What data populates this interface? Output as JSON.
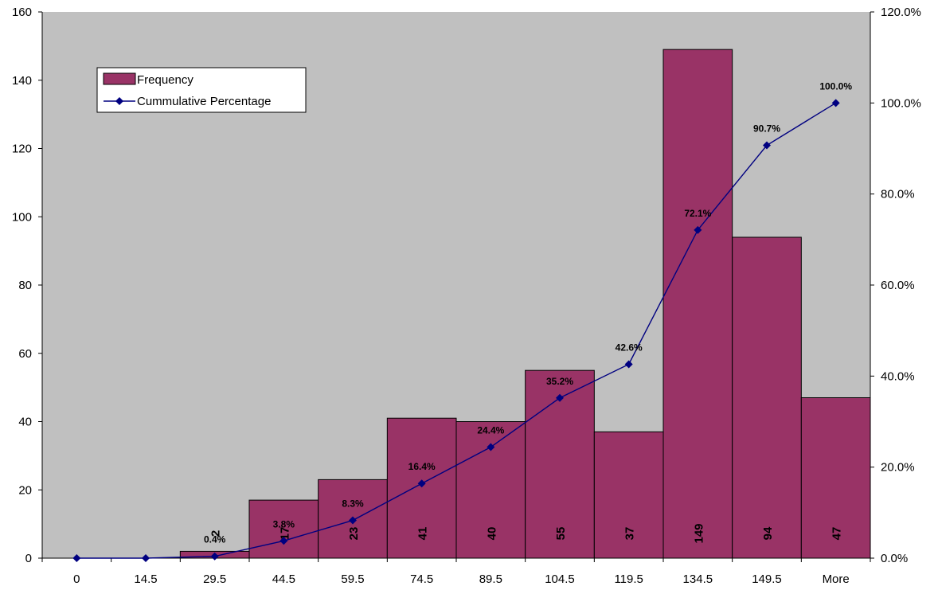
{
  "chart_data": {
    "type": "bar",
    "categories": [
      "0",
      "14.5",
      "29.5",
      "44.5",
      "59.5",
      "74.5",
      "89.5",
      "104.5",
      "119.5",
      "134.5",
      "149.5",
      "More"
    ],
    "series": [
      {
        "name": "Frequency",
        "type": "bar",
        "axis": "left",
        "values": [
          0,
          0,
          2,
          17,
          23,
          41,
          40,
          55,
          37,
          149,
          94,
          47
        ],
        "data_labels": [
          "",
          "",
          "2",
          "17",
          "23",
          "41",
          "40",
          "55",
          "37",
          "149",
          "94",
          "47"
        ]
      },
      {
        "name": "Cummulative Percentage",
        "type": "line",
        "axis": "right",
        "values": [
          0.0,
          0.0,
          0.4,
          3.8,
          8.3,
          16.4,
          24.4,
          35.2,
          42.6,
          72.1,
          90.7,
          100.0
        ],
        "data_labels": [
          "",
          "",
          "0.4%",
          "3.8%",
          "8.3%",
          "16.4%",
          "24.4%",
          "35.2%",
          "42.6%",
          "72.1%",
          "90.7%",
          "100.0%"
        ]
      }
    ],
    "y_left": {
      "ylim": [
        0,
        160
      ],
      "ticks": [
        "0",
        "20",
        "40",
        "60",
        "80",
        "100",
        "120",
        "140",
        "160"
      ]
    },
    "y_right": {
      "ylim": [
        0,
        120
      ],
      "ticks": [
        "0.0%",
        "20.0%",
        "40.0%",
        "60.0%",
        "80.0%",
        "100.0%",
        "120.0%"
      ]
    },
    "title": "",
    "xlabel": "",
    "ylabel": "",
    "grid": false,
    "legend_position": "top-left",
    "colors": {
      "plot_background": "#c0c0c0",
      "bar_fill": "#993366",
      "bar_stroke": "#000000",
      "line": "#000080",
      "marker": "#000080"
    }
  }
}
